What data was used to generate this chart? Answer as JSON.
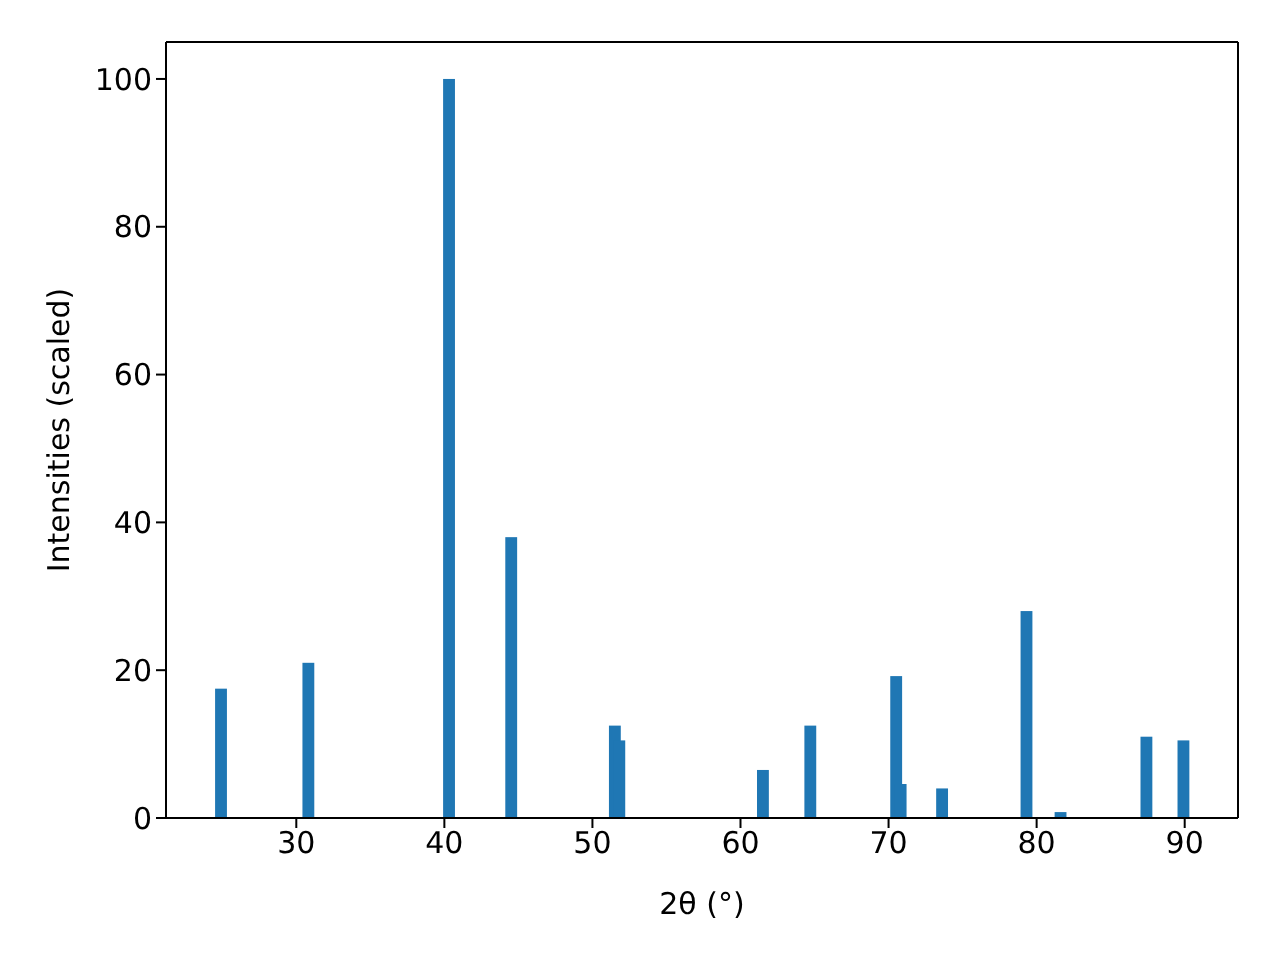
{
  "chart_data": {
    "type": "bar",
    "xlabel": "2θ (°)",
    "ylabel": "Intensities (scaled)",
    "x": [
      24.9,
      30.8,
      40.3,
      44.5,
      51.5,
      51.8,
      61.5,
      64.7,
      70.5,
      70.8,
      73.6,
      79.3,
      81.6,
      87.4,
      89.9
    ],
    "values": [
      17.5,
      21,
      100,
      38,
      12.5,
      10.5,
      6.5,
      12.5,
      19.2,
      4.6,
      4,
      28,
      0.8,
      11,
      10.5
    ],
    "color": "#1f77b4",
    "xlim": [
      21.2,
      93.6
    ],
    "xticks": [
      30,
      40,
      50,
      60,
      70,
      80,
      90
    ],
    "ylim": [
      0,
      105
    ],
    "yticks": [
      0,
      20,
      40,
      60,
      80,
      100
    ],
    "grid": false
  }
}
